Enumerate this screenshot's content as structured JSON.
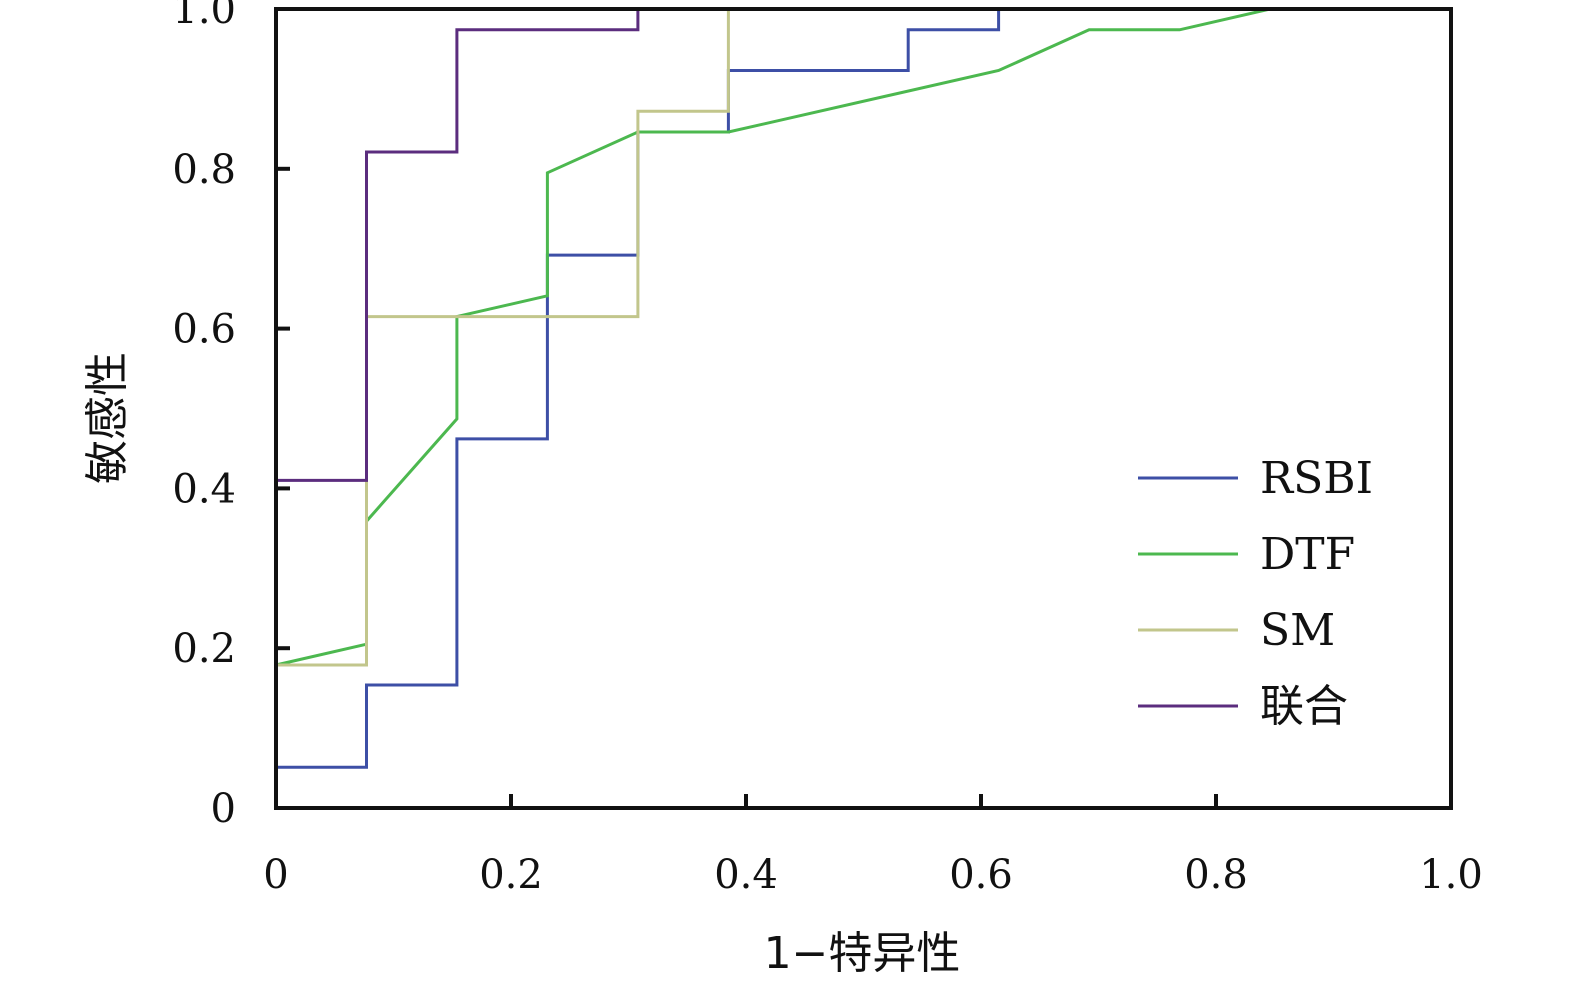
{
  "chart_data": {
    "type": "line",
    "title": "",
    "xlabel": "1−特异性",
    "ylabel": "敏感性",
    "xlim": [
      0,
      1
    ],
    "ylim": [
      0,
      1
    ],
    "x_ticks": [
      0,
      0.2,
      0.4,
      0.6,
      0.8,
      1.0
    ],
    "y_ticks": [
      0,
      0.2,
      0.4,
      0.6,
      0.8,
      1.0
    ],
    "x_tick_labels": [
      "0",
      "0.2",
      "0.4",
      "0.6",
      "0.8",
      "1.0"
    ],
    "y_tick_labels": [
      "0",
      "0.2",
      "0.4",
      "0.6",
      "0.8",
      "1.0"
    ],
    "grid": false,
    "legend_position": "right",
    "series": [
      {
        "name": "RSBI",
        "color": "#3d4fa6",
        "x": [
          0,
          0,
          0.077,
          0.077,
          0.154,
          0.154,
          0.231,
          0.231,
          0.308,
          0.308,
          0.385,
          0.385,
          0.538,
          0.538,
          0.615,
          0.615,
          1.0
        ],
        "y": [
          0,
          0.051,
          0.051,
          0.154,
          0.154,
          0.462,
          0.462,
          0.692,
          0.692,
          0.846,
          0.846,
          0.923,
          0.923,
          0.974,
          0.974,
          1.0,
          1.0
        ]
      },
      {
        "name": "DTF",
        "color": "#4cb84f",
        "x": [
          0,
          0,
          0.077,
          0.077,
          0.154,
          0.154,
          0.231,
          0.231,
          0.308,
          0.385,
          0.615,
          0.692,
          0.769,
          0.846,
          1.0
        ],
        "y": [
          0,
          0.179,
          0.205,
          0.359,
          0.487,
          0.615,
          0.641,
          0.795,
          0.846,
          0.846,
          0.923,
          0.974,
          0.974,
          1.0,
          1.0
        ]
      },
      {
        "name": "SM",
        "color": "#c2c68c",
        "x": [
          0,
          0,
          0.077,
          0.077,
          0.308,
          0.308,
          0.385,
          0.385,
          1.0
        ],
        "y": [
          0,
          0.179,
          0.179,
          0.615,
          0.615,
          0.872,
          0.872,
          1.0,
          1.0
        ]
      },
      {
        "name": "联合",
        "color": "#5b2d7e",
        "x": [
          0,
          0,
          0.077,
          0.077,
          0.154,
          0.154,
          0.308,
          0.308,
          1.0
        ],
        "y": [
          0,
          0.41,
          0.41,
          0.821,
          0.821,
          0.974,
          0.974,
          1.0,
          1.0
        ]
      }
    ]
  }
}
